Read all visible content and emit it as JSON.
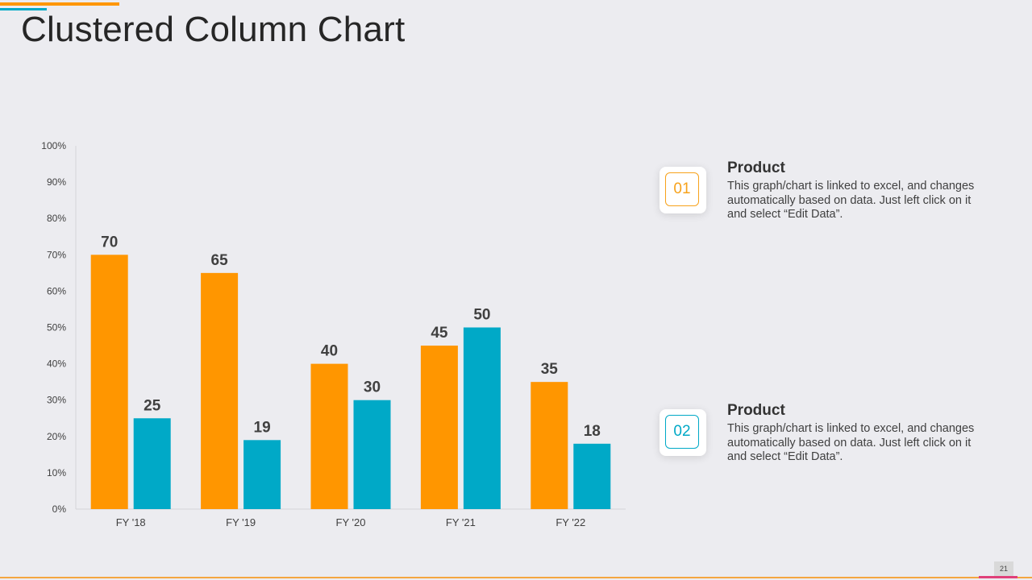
{
  "slide": {
    "title": "Clustered Column Chart",
    "page_number": "21"
  },
  "colors": {
    "orange": "#FF9600",
    "teal": "#00A9C7",
    "background": "#ECECF0",
    "footer_line": "#F4A640",
    "footer_pink": "#E0407A"
  },
  "legend": [
    {
      "badge": "01",
      "heading": "Product",
      "text": "This graph/chart is linked to excel, and changes automatically based on data. Just left click on it and select “Edit Data”.",
      "color": "#F7A21B"
    },
    {
      "badge": "02",
      "heading": "Product",
      "text": "This graph/chart is linked to excel, and changes automatically based on data. Just left click on it and select “Edit Data”.",
      "color": "#00A9C7"
    }
  ],
  "chart_data": {
    "type": "bar",
    "categories": [
      "FY '18",
      "FY '19",
      "FY '20",
      "FY '21",
      "FY '22"
    ],
    "series": [
      {
        "values": [
          70,
          65,
          40,
          45,
          35
        ],
        "color": "#FF9600"
      },
      {
        "values": [
          25,
          19,
          30,
          50,
          18
        ],
        "color": "#00A9C7"
      }
    ],
    "yticks": [
      "0%",
      "10%",
      "20%",
      "30%",
      "40%",
      "50%",
      "60%",
      "70%",
      "80%",
      "90%",
      "100%"
    ],
    "ylim": [
      0,
      100
    ],
    "grid": false,
    "data_labels": true
  }
}
